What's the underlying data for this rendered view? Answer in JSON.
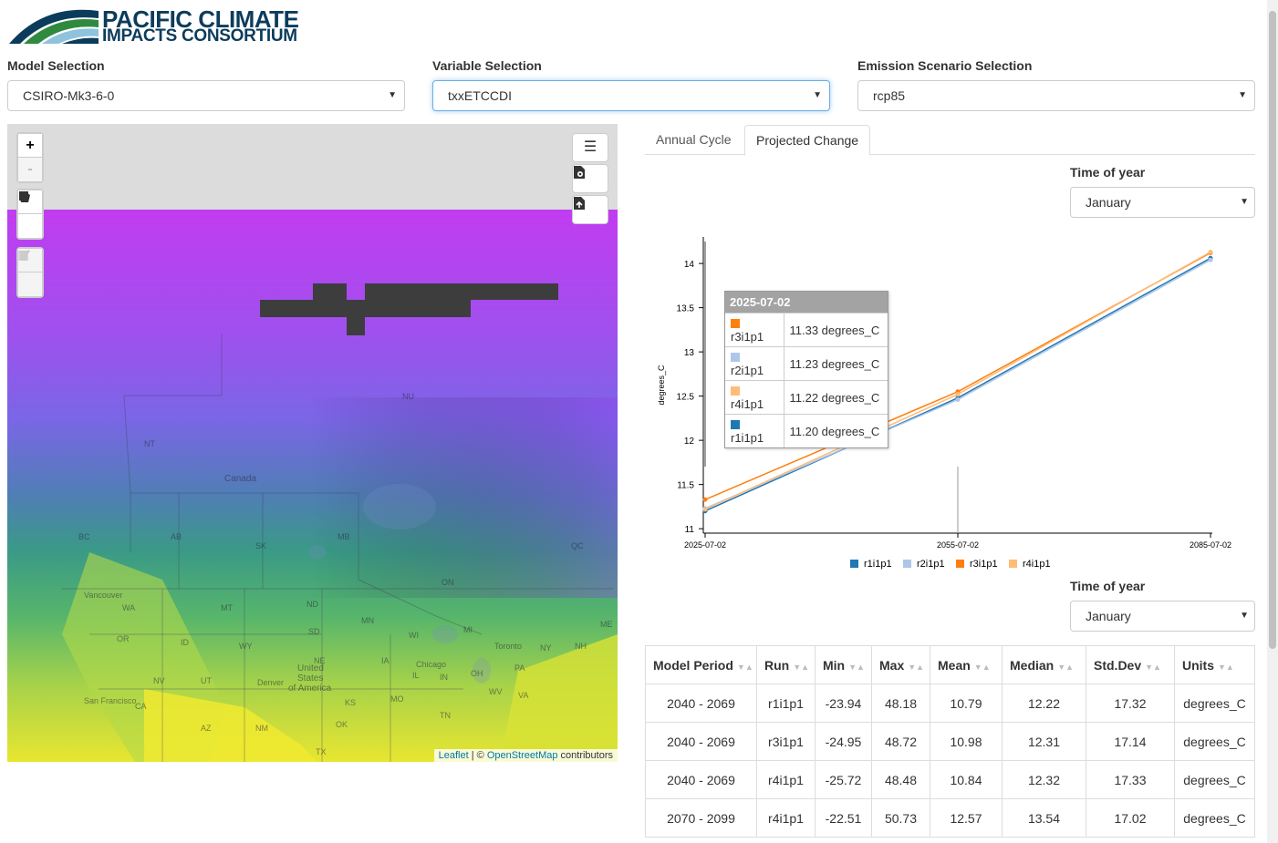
{
  "header": {
    "logo_line1": "PACIFIC CLIMATE",
    "logo_line2": "IMPACTS CONSORTIUM"
  },
  "selections": {
    "model": {
      "label": "Model Selection",
      "value": "CSIRO-Mk3-6-0"
    },
    "variable": {
      "label": "Variable Selection",
      "value": "txxETCCDI"
    },
    "scenario": {
      "label": "Emission Scenario Selection",
      "value": "rcp85"
    }
  },
  "map": {
    "zoom_in": "+",
    "zoom_out": "-",
    "attribution_leaflet": "Leaflet",
    "attribution_sep": " | © ",
    "attribution_osm": "OpenStreetMap",
    "attribution_suffix": " contributors",
    "place_labels": {
      "nu": "NU",
      "nt": "NT",
      "canada": "Canada",
      "bc": "BC",
      "ab": "AB",
      "sk": "SK",
      "mb": "MB",
      "on": "ON",
      "qc": "QC",
      "vancouver": "Vancouver",
      "wa": "WA",
      "mt": "MT",
      "nd": "ND",
      "mn": "MN",
      "or": "OR",
      "id": "ID",
      "wy": "WY",
      "sd": "SD",
      "wi": "WI",
      "mi": "MI",
      "ne": "NE",
      "ia": "IA",
      "us1": "United",
      "us2": "States",
      "us3": "of America",
      "nv": "NV",
      "ut": "UT",
      "co": "CO",
      "denver": "Denver",
      "ks": "KS",
      "mo": "MO",
      "il": "IL",
      "in": "IN",
      "oh": "OH",
      "pa": "PA",
      "ca": "CA",
      "sf": "San Francisco",
      "az": "AZ",
      "nm": "NM",
      "ok": "OK",
      "tn": "TN",
      "tx": "TX",
      "chicago": "Chicago",
      "toronto": "Toronto",
      "ny": "NY",
      "me": "ME",
      "wv": "WV",
      "va": "VA",
      "nh": "NH"
    }
  },
  "tabs": [
    {
      "label": "Annual Cycle"
    },
    {
      "label": "Projected Change"
    }
  ],
  "time_of_year_1": {
    "label": "Time of year",
    "value": "January"
  },
  "time_of_year_2": {
    "label": "Time of year",
    "value": "January"
  },
  "chart_data": {
    "type": "line",
    "ylabel": "degrees_C",
    "x": [
      "2025-07-02",
      "2055-07-02",
      "2085-07-02"
    ],
    "yticks": [
      11,
      11.5,
      12,
      12.5,
      13,
      13.5,
      14
    ],
    "ylim": [
      10.95,
      14.3
    ],
    "series": [
      {
        "name": "r1i1p1",
        "color": "#1f77b4",
        "values": [
          11.2,
          12.48,
          14.06
        ]
      },
      {
        "name": "r2i1p1",
        "color": "#aec7e8",
        "values": [
          11.23,
          12.46,
          14.04
        ]
      },
      {
        "name": "r3i1p1",
        "color": "#ff7f0e",
        "values": [
          11.33,
          12.55,
          14.12
        ]
      },
      {
        "name": "r4i1p1",
        "color": "#ffbb78",
        "values": [
          11.22,
          12.52,
          14.13
        ]
      }
    ],
    "legend_position": "bottom"
  },
  "tooltip": {
    "date": "2025-07-02",
    "rows": [
      {
        "name": "r3i1p1",
        "value": "11.33 degrees_C",
        "color": "#ff7f0e"
      },
      {
        "name": "r2i1p1",
        "value": "11.23 degrees_C",
        "color": "#aec7e8"
      },
      {
        "name": "r4i1p1",
        "value": "11.22 degrees_C",
        "color": "#ffbb78"
      },
      {
        "name": "r1i1p1",
        "value": "11.20 degrees_C",
        "color": "#1f77b4"
      }
    ]
  },
  "table": {
    "columns": [
      "Model Period",
      "Run",
      "Min",
      "Max",
      "Mean",
      "Median",
      "Std.Dev",
      "Units"
    ],
    "rows": [
      [
        "2040 - 2069",
        "r1i1p1",
        "-23.94",
        "48.18",
        "10.79",
        "12.22",
        "17.32",
        "degrees_C"
      ],
      [
        "2040 - 2069",
        "r3i1p1",
        "-24.95",
        "48.72",
        "10.98",
        "12.31",
        "17.14",
        "degrees_C"
      ],
      [
        "2040 - 2069",
        "r4i1p1",
        "-25.72",
        "48.48",
        "10.84",
        "12.32",
        "17.33",
        "degrees_C"
      ],
      [
        "2070 - 2099",
        "r4i1p1",
        "-22.51",
        "50.73",
        "12.57",
        "13.54",
        "17.02",
        "degrees_C"
      ]
    ]
  }
}
